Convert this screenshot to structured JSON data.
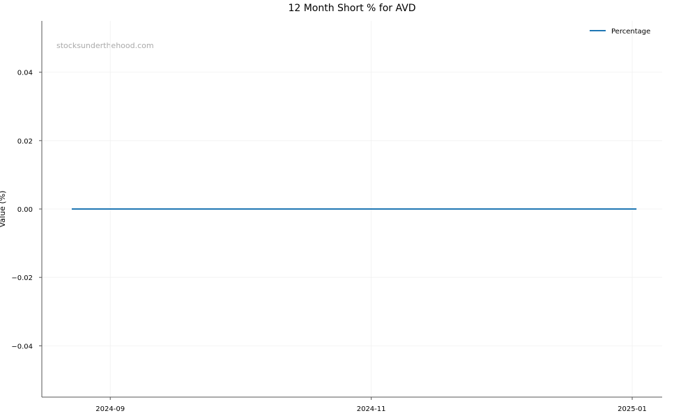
{
  "chart_data": {
    "type": "line",
    "title": "12 Month Short % for AVD",
    "xlabel": "",
    "ylabel": "Value (%)",
    "watermark": "stocksunderthehood.com",
    "x_ticks": [
      "2024-09-01",
      "2024-11-01",
      "2025-01-01"
    ],
    "x_tick_labels": [
      "2024-09",
      "2024-11",
      "2025-01"
    ],
    "y_ticks": [
      0.04,
      0.02,
      0.0,
      -0.02,
      -0.04
    ],
    "y_tick_labels": [
      "0.04",
      "0.02",
      "0.00",
      "−0.02",
      "−0.04"
    ],
    "xlim": [
      "2024-08-16",
      "2025-01-08"
    ],
    "ylim": [
      -0.055,
      0.055
    ],
    "grid": true,
    "legend_position": "top-right",
    "series": [
      {
        "name": "Percentage",
        "color": "#1f77b4",
        "x": [
          "2024-08-23",
          "2025-01-02"
        ],
        "y": [
          0.0,
          0.0
        ]
      }
    ]
  }
}
